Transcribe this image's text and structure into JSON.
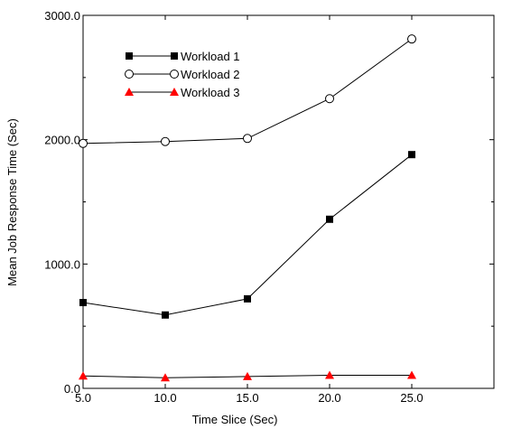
{
  "chart_data": {
    "type": "line",
    "title": "",
    "xlabel": "Time Slice (Sec)",
    "ylabel": "Mean Job Response Time (Sec)",
    "xlim": [
      5,
      30
    ],
    "ylim": [
      0,
      3000
    ],
    "x": [
      5,
      10,
      15,
      20,
      25
    ],
    "x_tick_labels": [
      "5.0",
      "10.0",
      "15.0",
      "20.0",
      "25.0"
    ],
    "y_ticks": [
      0,
      1000,
      2000,
      3000
    ],
    "y_tick_labels": [
      "0.0",
      "1000.0",
      "2000.0",
      "3000.0"
    ],
    "grid": false,
    "legend_position": "top-left",
    "series": [
      {
        "name": "Workload 1",
        "values": [
          690,
          590,
          720,
          1360,
          1880
        ],
        "marker": "square-filled",
        "color": "#000000"
      },
      {
        "name": "Workload 2",
        "values": [
          1970,
          1985,
          2010,
          2330,
          2810
        ],
        "marker": "circle-open",
        "color": "#000000"
      },
      {
        "name": "Workload 3",
        "values": [
          100,
          85,
          95,
          105,
          105
        ],
        "marker": "triangle-filled",
        "color": "#ff0000"
      }
    ]
  }
}
